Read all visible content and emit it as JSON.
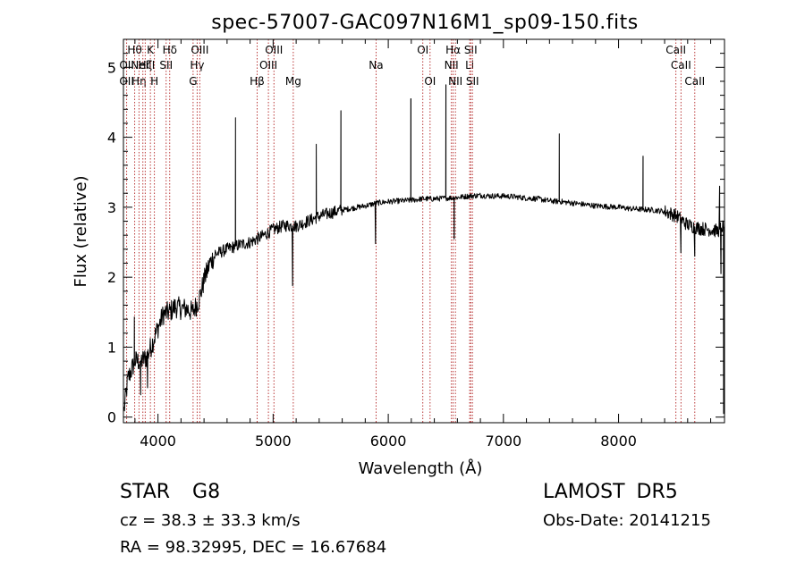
{
  "chart_data": {
    "type": "line",
    "title": "spec-57007-GAC097N16M1_sp09-150.fits",
    "xlabel": "Wavelength (Å)",
    "ylabel": "Flux (relative)",
    "xlim": [
      3700,
      8920
    ],
    "ylim": [
      -0.08,
      5.4
    ],
    "xticks": [
      4000,
      5000,
      6000,
      7000,
      8000
    ],
    "yticks": [
      0,
      1,
      2,
      3,
      4,
      5
    ],
    "line_color": "#000000",
    "marker_color": "#b22222",
    "continuum": [
      [
        3705,
        0.1
      ],
      [
        3740,
        0.55
      ],
      [
        3800,
        0.8
      ],
      [
        3850,
        0.8
      ],
      [
        3900,
        0.85
      ],
      [
        3950,
        1.05
      ],
      [
        4000,
        1.28
      ],
      [
        4050,
        1.48
      ],
      [
        4100,
        1.5
      ],
      [
        4150,
        1.58
      ],
      [
        4200,
        1.55
      ],
      [
        4250,
        1.55
      ],
      [
        4300,
        1.5
      ],
      [
        4350,
        1.65
      ],
      [
        4400,
        1.95
      ],
      [
        4450,
        2.2
      ],
      [
        4500,
        2.33
      ],
      [
        4600,
        2.4
      ],
      [
        4700,
        2.46
      ],
      [
        4800,
        2.5
      ],
      [
        4900,
        2.58
      ],
      [
        5000,
        2.68
      ],
      [
        5100,
        2.74
      ],
      [
        5200,
        2.73
      ],
      [
        5300,
        2.8
      ],
      [
        5400,
        2.87
      ],
      [
        5500,
        2.92
      ],
      [
        5600,
        2.96
      ],
      [
        5700,
        2.99
      ],
      [
        5800,
        3.02
      ],
      [
        5900,
        3.06
      ],
      [
        6000,
        3.08
      ],
      [
        6100,
        3.09
      ],
      [
        6200,
        3.1
      ],
      [
        6300,
        3.12
      ],
      [
        6400,
        3.12
      ],
      [
        6500,
        3.13
      ],
      [
        6600,
        3.14
      ],
      [
        6700,
        3.16
      ],
      [
        6800,
        3.17
      ],
      [
        6900,
        3.16
      ],
      [
        7000,
        3.16
      ],
      [
        7100,
        3.15
      ],
      [
        7200,
        3.13
      ],
      [
        7300,
        3.12
      ],
      [
        7400,
        3.09
      ],
      [
        7500,
        3.08
      ],
      [
        7600,
        3.06
      ],
      [
        7700,
        3.04
      ],
      [
        7800,
        3.02
      ],
      [
        7900,
        3.01
      ],
      [
        8000,
        3.0
      ],
      [
        8100,
        2.98
      ],
      [
        8200,
        2.97
      ],
      [
        8300,
        2.96
      ],
      [
        8400,
        2.94
      ],
      [
        8500,
        2.88
      ],
      [
        8600,
        2.75
      ],
      [
        8700,
        2.7
      ],
      [
        8800,
        2.68
      ],
      [
        8860,
        2.66
      ],
      [
        8900,
        2.72
      ]
    ],
    "spikes": [
      [
        3795,
        1.43
      ],
      [
        4673,
        4.28
      ],
      [
        5375,
        3.9
      ],
      [
        5588,
        4.38
      ],
      [
        6196,
        4.55
      ],
      [
        6500,
        4.75
      ],
      [
        6572,
        2.55
      ],
      [
        7485,
        4.05
      ],
      [
        8212,
        3.73
      ],
      [
        8878,
        3.3
      ],
      [
        3850,
        0.32
      ],
      [
        3910,
        0.42
      ],
      [
        4410,
        2.1
      ],
      [
        5170,
        1.88
      ],
      [
        5890,
        2.48
      ],
      [
        8542,
        2.35
      ],
      [
        8662,
        2.3
      ],
      [
        8890,
        2.05
      ],
      [
        8912,
        0.05
      ]
    ],
    "markers": [
      {
        "x": 3728,
        "labels": [
          "OII",
          "OII"
        ],
        "rows": [
          2,
          3
        ]
      },
      {
        "x": 3798,
        "labels": [
          "Hθ"
        ],
        "rows": [
          1
        ]
      },
      {
        "x": 3835,
        "labels": [
          "Hη"
        ],
        "rows": [
          3
        ]
      },
      {
        "x": 3869,
        "labels": [
          "NeIII"
        ],
        "rows": [
          2
        ]
      },
      {
        "x": 3889,
        "labels": [
          "Hζ"
        ],
        "rows": [
          2
        ]
      },
      {
        "x": 3934,
        "labels": [
          "K"
        ],
        "rows": [
          1
        ]
      },
      {
        "x": 3969,
        "labels": [
          "H"
        ],
        "rows": [
          3
        ]
      },
      {
        "x": 4071,
        "labels": [
          "SII"
        ],
        "rows": [
          2
        ]
      },
      {
        "x": 4102,
        "labels": [
          "Hδ"
        ],
        "rows": [
          1
        ]
      },
      {
        "x": 4305,
        "labels": [
          "G"
        ],
        "rows": [
          3
        ]
      },
      {
        "x": 4340,
        "labels": [
          "Hγ"
        ],
        "rows": [
          2
        ]
      },
      {
        "x": 4363,
        "labels": [
          "OIII"
        ],
        "rows": [
          1
        ]
      },
      {
        "x": 4861,
        "labels": [
          "Hβ"
        ],
        "rows": [
          3
        ]
      },
      {
        "x": 4959,
        "labels": [
          "OIII"
        ],
        "rows": [
          2
        ]
      },
      {
        "x": 5007,
        "labels": [
          "OIII"
        ],
        "rows": [
          1
        ]
      },
      {
        "x": 5175,
        "labels": [
          "Mg"
        ],
        "rows": [
          3
        ]
      },
      {
        "x": 5894,
        "labels": [
          "Na"
        ],
        "rows": [
          2
        ]
      },
      {
        "x": 6300,
        "labels": [
          "OI"
        ],
        "rows": [
          1
        ]
      },
      {
        "x": 6363,
        "labels": [
          "OI"
        ],
        "rows": [
          3
        ]
      },
      {
        "x": 6548,
        "labels": [
          "NII"
        ],
        "rows": [
          2
        ]
      },
      {
        "x": 6563,
        "labels": [
          "Hα"
        ],
        "rows": [
          1
        ]
      },
      {
        "x": 6583,
        "labels": [
          "NII"
        ],
        "rows": [
          3
        ]
      },
      {
        "x": 6707,
        "labels": [
          "Li"
        ],
        "rows": [
          2
        ]
      },
      {
        "x": 6716,
        "labels": [
          "SII"
        ],
        "rows": [
          1
        ]
      },
      {
        "x": 6731,
        "labels": [
          "SII"
        ],
        "rows": [
          3
        ]
      },
      {
        "x": 8498,
        "labels": [
          "CaII"
        ],
        "rows": [
          1
        ]
      },
      {
        "x": 8542,
        "labels": [
          "CaII"
        ],
        "rows": [
          2
        ]
      },
      {
        "x": 8662,
        "labels": [
          "CaII"
        ],
        "rows": [
          3
        ]
      }
    ]
  },
  "info": {
    "class": "STAR G8",
    "survey": "LAMOST DR5",
    "cz": "cz = 38.3 ± 33.3 km/s",
    "obs_date": "Obs-Date: 20141215",
    "radec": "RA = 98.32995, DEC = 16.67684"
  }
}
